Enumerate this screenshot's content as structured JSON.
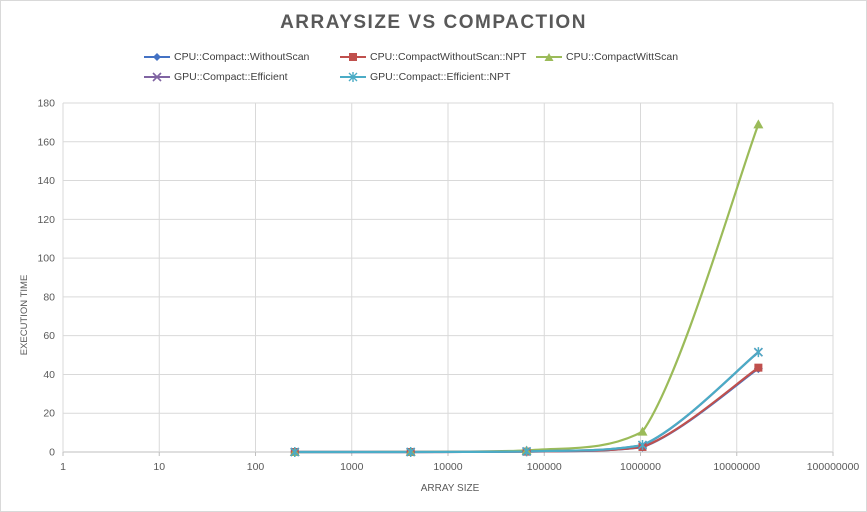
{
  "chart_data": {
    "type": "line",
    "title": "ARRAYSIZE VS COMPACTION",
    "xlabel": "ARRAY SIZE",
    "ylabel": "EXECUTION TIME",
    "x_scale": "log",
    "xlim": [
      1,
      100000000
    ],
    "ylim": [
      0,
      180
    ],
    "x_ticks": [
      "1",
      "10",
      "100",
      "1000",
      "10000",
      "100000",
      "1000000",
      "10000000",
      "100000000"
    ],
    "y_ticks": [
      "0",
      "20",
      "40",
      "60",
      "80",
      "100",
      "120",
      "140",
      "160",
      "180"
    ],
    "grid": true,
    "legend_position": "top",
    "x": [
      256,
      4096,
      65536,
      1048576,
      16777216
    ],
    "series": [
      {
        "name": "CPU::Compact::WithoutScan",
        "color": "#4472c4",
        "marker": "diamond",
        "values": [
          0,
          0,
          0.2,
          2.5,
          43
        ]
      },
      {
        "name": "CPU::CompactWithoutScan::NPT",
        "color": "#c0504d",
        "marker": "square",
        "values": [
          0,
          0,
          0.2,
          2.6,
          43.5
        ]
      },
      {
        "name": "CPU::CompactWittScan",
        "color": "#9bbb59",
        "marker": "triangle",
        "values": [
          0,
          0.1,
          0.8,
          10.5,
          169
        ]
      },
      {
        "name": "GPU::Compact::Efficient",
        "color": "#8064a2",
        "marker": "x",
        "values": [
          0,
          0,
          0.3,
          3.5,
          51.5
        ]
      },
      {
        "name": "GPU::Compact::Efficient::NPT",
        "color": "#4bacc6",
        "marker": "asterisk",
        "values": [
          0,
          0,
          0.3,
          3.6,
          51.5
        ]
      }
    ]
  }
}
